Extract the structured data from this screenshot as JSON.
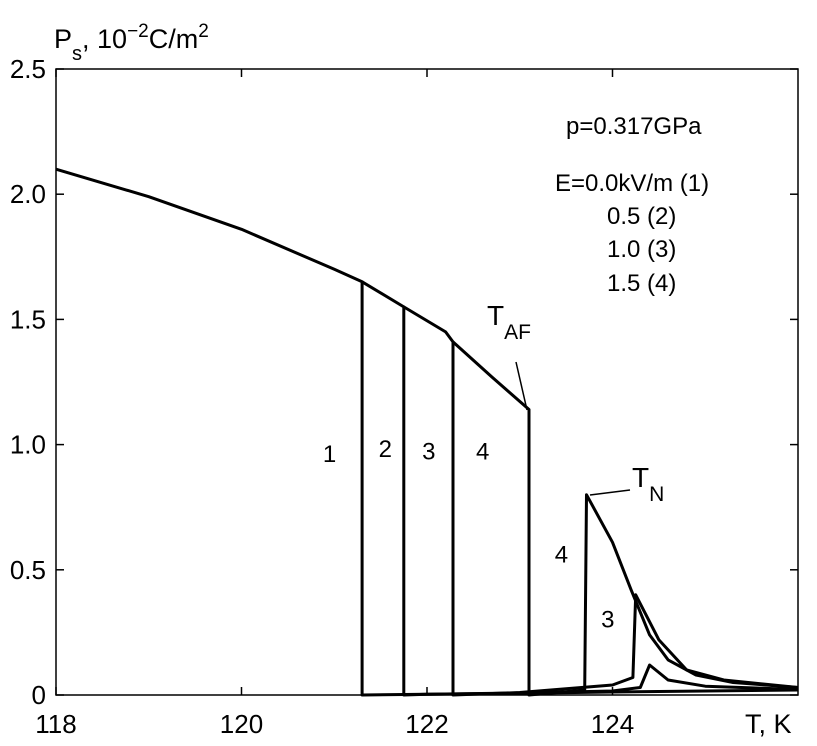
{
  "chart_data": {
    "type": "line",
    "ylabel_main": "P",
    "ylabel_sub": "s",
    "ylabel_unit_a": ", 10",
    "ylabel_exp1": "−2",
    "ylabel_unit_b": "C/m",
    "ylabel_exp2": "2",
    "xlabel": "T, K",
    "xlim": [
      118,
      126
    ],
    "ylim": [
      0,
      2.5
    ],
    "x_ticks": [
      118,
      120,
      122,
      124
    ],
    "x_tick_labels": [
      "118",
      "120",
      "122",
      "124"
    ],
    "y_ticks": [
      0,
      0.5,
      1.0,
      1.5,
      2.0,
      2.5
    ],
    "y_tick_labels": [
      "0",
      "0.5",
      "1.0",
      "1.5",
      "2.0",
      "2.5"
    ],
    "grid": false,
    "legend": {
      "line1": "p=0.317GPa",
      "line2": "E=0.0kV/m (1)",
      "line3": "0.5 (2)",
      "line4": "1.0 (3)",
      "line5": "1.5 (4)"
    },
    "series": [
      {
        "id": "1",
        "points": [
          [
            118,
            2.1
          ],
          [
            119,
            1.99
          ],
          [
            120,
            1.86
          ],
          [
            121,
            1.7
          ],
          [
            121.3,
            1.65
          ],
          [
            121.3,
            0
          ],
          [
            122,
            0.003
          ],
          [
            123,
            0.007
          ],
          [
            124,
            0.012
          ],
          [
            125,
            0.016
          ],
          [
            126,
            0.02
          ]
        ]
      },
      {
        "id": "2",
        "points": [
          [
            121.3,
            1.65
          ],
          [
            121.75,
            1.55
          ],
          [
            121.75,
            0
          ],
          [
            122,
            0.003
          ],
          [
            123,
            0.008
          ],
          [
            124,
            0.016
          ],
          [
            124.3,
            0.03
          ],
          [
            124.4,
            0.12
          ],
          [
            124.6,
            0.06
          ],
          [
            125,
            0.035
          ],
          [
            126,
            0.022
          ]
        ]
      },
      {
        "id": "3",
        "points": [
          [
            121.75,
            1.55
          ],
          [
            122.2,
            1.45
          ],
          [
            122.28,
            1.41
          ],
          [
            122.28,
            0
          ],
          [
            123,
            0.01
          ],
          [
            124,
            0.04
          ],
          [
            124.22,
            0.07
          ],
          [
            124.25,
            0.4
          ],
          [
            124.5,
            0.22
          ],
          [
            124.8,
            0.1
          ],
          [
            125.2,
            0.06
          ],
          [
            126,
            0.03
          ]
        ]
      },
      {
        "id": "4",
        "points": [
          [
            122.28,
            1.41
          ],
          [
            122.7,
            1.27
          ],
          [
            123.1,
            1.14
          ],
          [
            123.1,
            0
          ],
          [
            123.7,
            0.02
          ],
          [
            123.72,
            0.8
          ],
          [
            124,
            0.61
          ],
          [
            124.2,
            0.42
          ],
          [
            124.4,
            0.24
          ],
          [
            124.6,
            0.14
          ],
          [
            124.9,
            0.08
          ],
          [
            125.3,
            0.05
          ],
          [
            126,
            0.03
          ]
        ]
      }
    ],
    "annotations": {
      "t_af_main": "T",
      "t_af_sub": "AF",
      "t_n_main": "T",
      "t_n_sub": "N",
      "curve_labels": [
        {
          "text": "1",
          "x": 120.95,
          "y": 0.93
        },
        {
          "text": "2",
          "x": 121.55,
          "y": 0.95
        },
        {
          "text": "3",
          "x": 122.02,
          "y": 0.94
        },
        {
          "text": "4",
          "x": 122.6,
          "y": 0.94
        },
        {
          "text": "4",
          "x": 123.45,
          "y": 0.53
        },
        {
          "text": "3",
          "x": 123.95,
          "y": 0.27
        }
      ]
    }
  }
}
